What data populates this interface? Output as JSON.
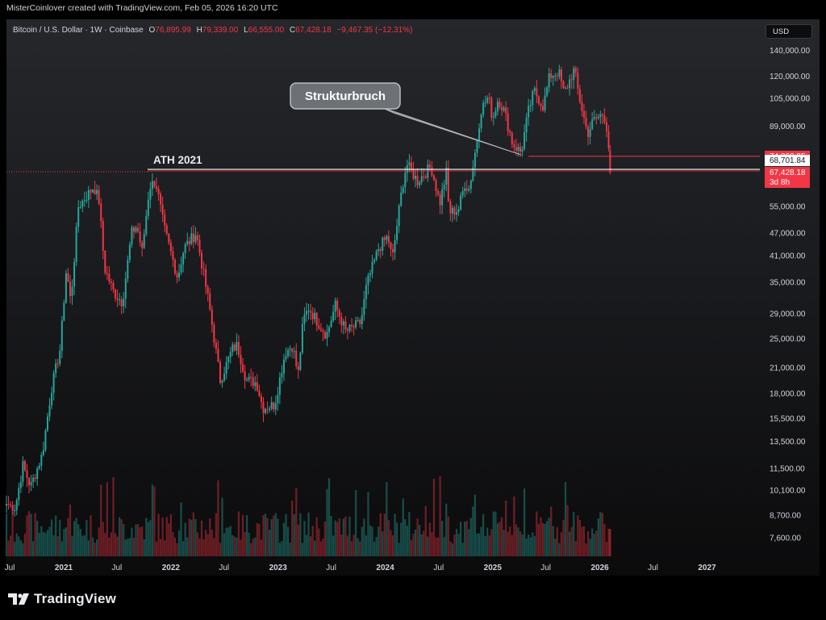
{
  "credit": "MisterCoinlover created with TradingView.com, Feb 05, 2026 16:20 UTC",
  "legend": {
    "symbol": "Bitcoin / U.S. Dollar · 1W · Coinbase",
    "open_label": "O",
    "open": "76,895.99",
    "high_label": "H",
    "high": "79,339.00",
    "low_label": "L",
    "low": "66,555.00",
    "close_label": "C",
    "close": "67,428.18",
    "change": "−9,467.35 (−12.31%)"
  },
  "currency": "USD",
  "colors": {
    "up": "#26a69a",
    "down": "#f23645",
    "level_line": "#ffffff",
    "accent_red": "#f23645"
  },
  "annotations": {
    "ath": "ATH 2021",
    "struktur": "Strukturbruch"
  },
  "price_labels": {
    "level1": "74,262.95",
    "level2": "68,701.84",
    "current": "67,428.18",
    "countdown": "3d 8h"
  },
  "logo": {
    "icon": "tradingview-logo-icon",
    "text": "TradingView"
  },
  "chart_data": {
    "type": "candlestick",
    "title": "Bitcoin / U.S. Dollar · 1W · Coinbase",
    "y_scale": "log",
    "ylim": [
      6800,
      150000
    ],
    "xlim": [
      "2020-06-20",
      "2027-06-30"
    ],
    "y_ticks": [
      7600,
      8700,
      10100,
      11500,
      13500,
      15500,
      18000,
      21000,
      25000,
      29000,
      35000,
      41000,
      47000,
      55000,
      89000,
      105000,
      120000,
      140000
    ],
    "y_tick_labels": [
      "7,600.00",
      "8,700.00",
      "10,100.00",
      "11,500.00",
      "13,500.00",
      "15,500.00",
      "18,000.00",
      "21,000.00",
      "25,000.00",
      "29,000.00",
      "35,000.00",
      "41,000.00",
      "47,000.00",
      "55,000.00",
      "89,000.00",
      "105,000.00",
      "120,000.00",
      "140,000.00"
    ],
    "x_ticks": [
      {
        "date": "2020-07-01",
        "label": "Jul"
      },
      {
        "date": "2021-01-01",
        "label": "2021"
      },
      {
        "date": "2021-07-01",
        "label": "Jul"
      },
      {
        "date": "2022-01-01",
        "label": "2022"
      },
      {
        "date": "2022-07-01",
        "label": "Jul"
      },
      {
        "date": "2023-01-01",
        "label": "2023"
      },
      {
        "date": "2023-07-01",
        "label": "Jul"
      },
      {
        "date": "2024-01-01",
        "label": "2024"
      },
      {
        "date": "2024-07-01",
        "label": "Jul"
      },
      {
        "date": "2025-01-01",
        "label": "2025"
      },
      {
        "date": "2025-07-01",
        "label": "Jul"
      },
      {
        "date": "2026-01-01",
        "label": "2026"
      },
      {
        "date": "2026-07-01",
        "label": "Jul"
      },
      {
        "date": "2027-01-01",
        "label": "2027"
      }
    ],
    "anchors": [
      [
        "2020-06-20",
        9300
      ],
      [
        "2020-07-20",
        9100
      ],
      [
        "2020-08-15",
        11700
      ],
      [
        "2020-09-10",
        10300
      ],
      [
        "2020-10-20",
        12500
      ],
      [
        "2020-11-20",
        18500
      ],
      [
        "2020-12-20",
        23500
      ],
      [
        "2021-01-10",
        38000
      ],
      [
        "2021-01-25",
        31000
      ],
      [
        "2021-02-20",
        55000
      ],
      [
        "2021-03-15",
        58000
      ],
      [
        "2021-04-14",
        62000
      ],
      [
        "2021-05-01",
        57000
      ],
      [
        "2021-05-20",
        38000
      ],
      [
        "2021-06-20",
        33000
      ],
      [
        "2021-07-20",
        31000
      ],
      [
        "2021-08-20",
        47000
      ],
      [
        "2021-09-07",
        49000
      ],
      [
        "2021-09-25",
        42000
      ],
      [
        "2021-10-20",
        62000
      ],
      [
        "2021-11-10",
        64000
      ],
      [
        "2021-12-10",
        48000
      ],
      [
        "2022-01-24",
        36000
      ],
      [
        "2022-02-15",
        43000
      ],
      [
        "2022-03-28",
        47000
      ],
      [
        "2022-05-10",
        31000
      ],
      [
        "2022-06-18",
        19500
      ],
      [
        "2022-07-30",
        23500
      ],
      [
        "2022-08-15",
        24000
      ],
      [
        "2022-09-15",
        19500
      ],
      [
        "2022-10-20",
        19200
      ],
      [
        "2022-11-10",
        16500
      ],
      [
        "2022-12-20",
        16800
      ],
      [
        "2023-01-25",
        23000
      ],
      [
        "2023-02-20",
        24000
      ],
      [
        "2023-03-10",
        20000
      ],
      [
        "2023-03-28",
        28000
      ],
      [
        "2023-04-15",
        30000
      ],
      [
        "2023-06-15",
        25500
      ],
      [
        "2023-07-15",
        30500
      ],
      [
        "2023-08-20",
        26000
      ],
      [
        "2023-10-10",
        27500
      ],
      [
        "2023-10-30",
        34500
      ],
      [
        "2023-12-10",
        43000
      ],
      [
        "2024-01-10",
        46000
      ],
      [
        "2024-01-25",
        40000
      ],
      [
        "2024-02-28",
        62000
      ],
      [
        "2024-03-14",
        71000
      ],
      [
        "2024-04-20",
        64000
      ],
      [
        "2024-06-05",
        70000
      ],
      [
        "2024-07-05",
        56000
      ],
      [
        "2024-07-28",
        68000
      ],
      [
        "2024-08-05",
        53000
      ],
      [
        "2024-09-06",
        54000
      ],
      [
        "2024-09-30",
        64000
      ],
      [
        "2024-10-10",
        60000
      ],
      [
        "2024-10-29",
        72000
      ],
      [
        "2024-11-22",
        98000
      ],
      [
        "2024-12-17",
        106000
      ],
      [
        "2025-01-01",
        93000
      ],
      [
        "2025-01-20",
        105000
      ],
      [
        "2025-02-10",
        97000
      ],
      [
        "2025-03-10",
        80000
      ],
      [
        "2025-04-08",
        76000
      ],
      [
        "2025-05-01",
        96000
      ],
      [
        "2025-05-22",
        110000
      ],
      [
        "2025-06-22",
        100000
      ],
      [
        "2025-07-14",
        120000
      ],
      [
        "2025-08-14",
        123000
      ],
      [
        "2025-09-01",
        108000
      ],
      [
        "2025-10-06",
        125000
      ],
      [
        "2025-10-20",
        108000
      ],
      [
        "2025-11-20",
        85000
      ],
      [
        "2025-12-10",
        92000
      ],
      [
        "2026-01-14",
        96000
      ],
      [
        "2026-01-26",
        87000
      ],
      [
        "2026-02-01",
        77000
      ],
      [
        "2026-02-05",
        67428
      ]
    ],
    "last_candle": {
      "open": 76895.99,
      "high": 79339.0,
      "low": 66555.0,
      "close": 67428.18
    },
    "levels": [
      {
        "name": "ATH 2021",
        "value": 68701.84,
        "color": "#ffffff"
      },
      {
        "name": "",
        "value": 74262.95,
        "color": "#f23645"
      }
    ],
    "volume": "weekly volume histogram along the bottom, bars colored by candle direction"
  }
}
